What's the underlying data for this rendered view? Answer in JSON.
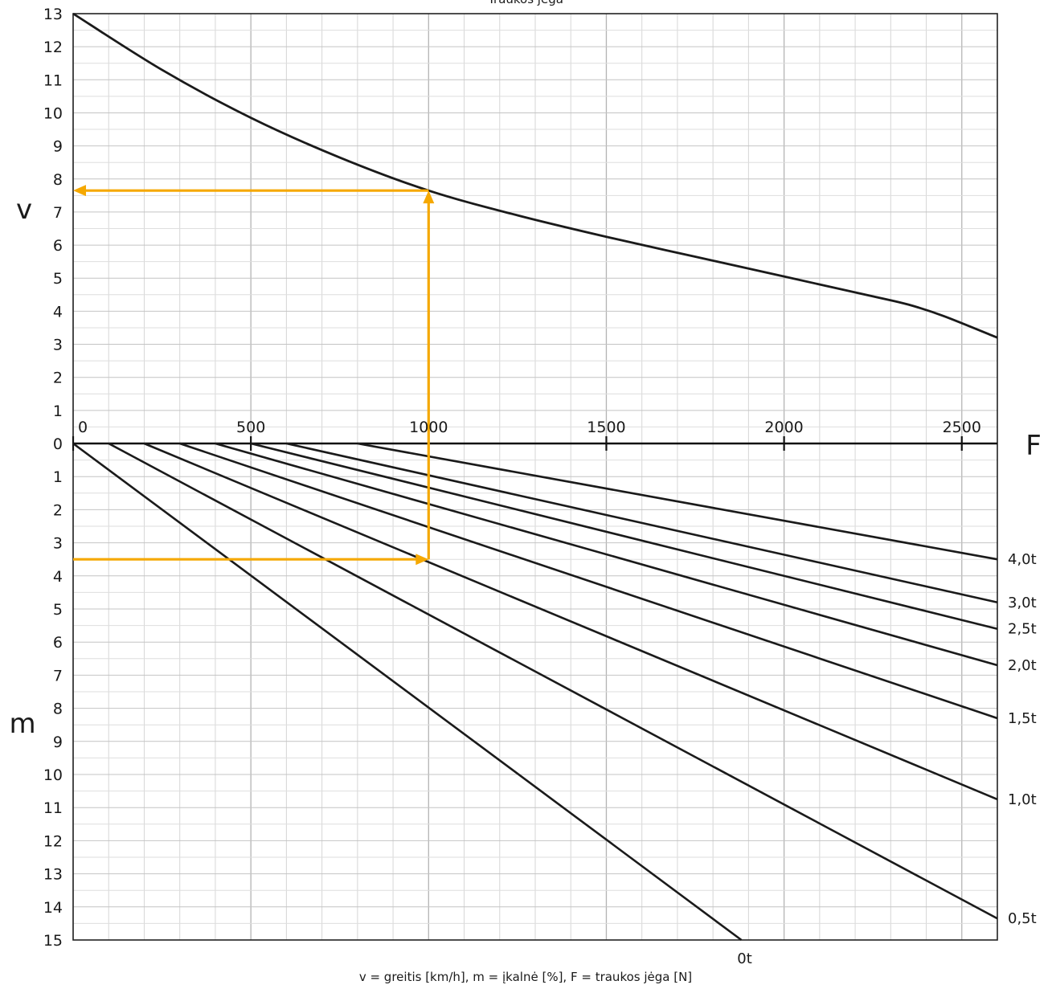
{
  "chart_data": {
    "type": "line",
    "title": "Traukos jėga",
    "caption": "v = greitis [km/h], m = įkalnė [%], F = traukos jėga [N]",
    "x_axis": {
      "label": "F",
      "ticks": [
        0,
        500,
        1000,
        1500,
        2000,
        2500
      ],
      "range": [
        0,
        2600
      ],
      "grid_minor_step": 100,
      "grid_major_step": 500
    },
    "upper_axis": {
      "label": "v",
      "ticks": [
        0,
        1,
        2,
        3,
        4,
        5,
        6,
        7,
        8,
        9,
        10,
        11,
        12,
        13
      ],
      "range": [
        0,
        13
      ]
    },
    "lower_axis": {
      "label": "m",
      "ticks": [
        0,
        1,
        2,
        3,
        4,
        5,
        6,
        7,
        8,
        9,
        10,
        11,
        12,
        13,
        14,
        15
      ],
      "range": [
        0,
        15
      ],
      "inverted": true
    },
    "speed_curve": {
      "x": [
        0,
        250,
        500,
        750,
        1000,
        1250,
        1500,
        1750,
        2000,
        2250,
        2350,
        2450,
        2600
      ],
      "v": [
        13.0,
        11.3,
        9.85,
        8.65,
        7.65,
        6.9,
        6.25,
        5.65,
        5.05,
        4.45,
        4.2,
        3.85,
        3.2
      ]
    },
    "load_lines": [
      {
        "name": "0t",
        "F": [
          0,
          1880
        ],
        "m": [
          0,
          15.0
        ]
      },
      {
        "name": "0,5t",
        "F": [
          100,
          2600
        ],
        "m": [
          0,
          14.35
        ]
      },
      {
        "name": "1,0t",
        "F": [
          200,
          2600
        ],
        "m": [
          0,
          10.75
        ]
      },
      {
        "name": "1,5t",
        "F": [
          300,
          2600
        ],
        "m": [
          0,
          8.3
        ]
      },
      {
        "name": "2,0t",
        "F": [
          400,
          2600
        ],
        "m": [
          0,
          6.7
        ]
      },
      {
        "name": "2,5t",
        "F": [
          500,
          2600
        ],
        "m": [
          0,
          5.6
        ]
      },
      {
        "name": "3,0t",
        "F": [
          600,
          2600
        ],
        "m": [
          0,
          4.8
        ]
      },
      {
        "name": "4,0t",
        "F": [
          800,
          2600
        ],
        "m": [
          0,
          3.5
        ]
      }
    ],
    "example_path": {
      "color": "#f5a800",
      "F": 1000,
      "m": 3.5,
      "v": 7.65
    },
    "grid": true
  }
}
